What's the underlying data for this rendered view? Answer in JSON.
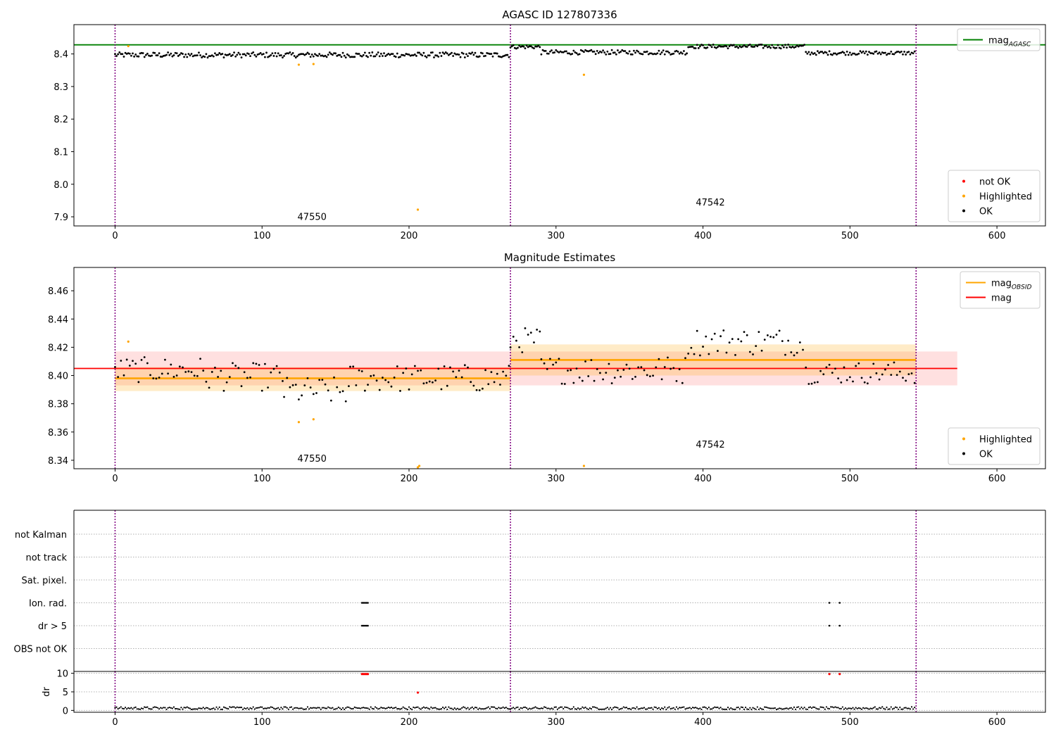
{
  "colors": {
    "ok": "#000000",
    "highlighted": "#ffa500",
    "not_ok": "#ff0000",
    "mag_agasc": "#008000",
    "mag": "#ff0000",
    "mag_obsid": "#ffa500",
    "obsid_boundary": "#800080"
  },
  "chart_data": [
    {
      "type": "scatter",
      "title": "AGASC ID 127807336",
      "xlim": [
        -28,
        633
      ],
      "ylim": [
        7.872,
        8.49
      ],
      "xticks": [
        "0",
        "100",
        "200",
        "300",
        "400",
        "500",
        "600"
      ],
      "yticks": [
        "7.9",
        "8.0",
        "8.1",
        "8.2",
        "8.3",
        "8.4"
      ],
      "obsid_boundaries": [
        0,
        269,
        545
      ],
      "obsid_labels": [
        {
          "text": "47550",
          "x": 134,
          "y": 7.89
        },
        {
          "text": "47542",
          "x": 405,
          "y": 7.935
        }
      ],
      "lines": [
        {
          "name": "mag_AGASC",
          "y": 8.428,
          "x": [
            -28,
            633
          ]
        }
      ],
      "segments": [
        {
          "x0": 0,
          "x1": 269,
          "mean": 8.397,
          "amp": 0.008
        },
        {
          "x0": 269,
          "x1": 290,
          "mean": 8.422,
          "amp": 0.006
        },
        {
          "x0": 290,
          "x1": 390,
          "mean": 8.405,
          "amp": 0.007
        },
        {
          "x0": 390,
          "x1": 470,
          "mean": 8.423,
          "amp": 0.006
        },
        {
          "x0": 470,
          "x1": 545,
          "mean": 8.403,
          "amp": 0.006
        }
      ],
      "highlighted_points": [
        [
          9,
          8.424
        ],
        [
          125,
          8.367
        ],
        [
          135,
          8.369
        ],
        [
          206,
          7.922
        ],
        [
          319,
          8.336
        ]
      ],
      "legends": [
        {
          "position": "top-right",
          "entries": [
            {
              "kind": "line",
              "label": "mag",
              "sub": "AGASC",
              "color_key": "mag_agasc"
            }
          ]
        },
        {
          "position": "bottom-right",
          "entries": [
            {
              "kind": "dot",
              "label": "not OK",
              "color_key": "not_ok"
            },
            {
              "kind": "dot",
              "label": "Highlighted",
              "color_key": "highlighted"
            },
            {
              "kind": "dot",
              "label": "OK",
              "color_key": "ok"
            }
          ]
        }
      ]
    },
    {
      "type": "scatter",
      "title": "Magnitude Estimates",
      "xlim": [
        -28,
        633
      ],
      "ylim": [
        8.334,
        8.4765
      ],
      "xticks": [
        "0",
        "100",
        "200",
        "300",
        "400",
        "500",
        "600"
      ],
      "yticks": [
        "8.34",
        "8.36",
        "8.38",
        "8.40",
        "8.42",
        "8.44",
        "8.46"
      ],
      "obsid_boundaries": [
        0,
        269,
        545
      ],
      "obsid_labels": [
        {
          "text": "47550",
          "x": 134,
          "y": 8.339
        },
        {
          "text": "47542",
          "x": 405,
          "y": 8.349
        }
      ],
      "bands": [
        {
          "name": "mag",
          "x0": 0,
          "x1": 573,
          "y0": 8.393,
          "y1": 8.417,
          "color_key": "mag"
        },
        {
          "name": "mag_OBSID 47550",
          "x0": 0,
          "x1": 269,
          "y0": 8.389,
          "y1": 8.406,
          "color_key": "mag_obsid"
        },
        {
          "name": "mag_OBSID 47542",
          "x0": 269,
          "x1": 545,
          "y0": 8.4,
          "y1": 8.422,
          "color_key": "mag_obsid"
        }
      ],
      "lines": [
        {
          "name": "mag",
          "y": 8.405,
          "x": [
            -28,
            573
          ]
        },
        {
          "name": "mag_OBSID 47550",
          "y": 8.398,
          "x": [
            0,
            269
          ]
        },
        {
          "name": "mag_OBSID 47542",
          "y": 8.411,
          "x": [
            269,
            545
          ]
        }
      ],
      "segments": [
        {
          "x0": 0,
          "x1": 60,
          "mean": 8.404,
          "amp": 0.009
        },
        {
          "x0": 60,
          "x1": 115,
          "mean": 8.399,
          "amp": 0.01
        },
        {
          "x0": 115,
          "x1": 160,
          "mean": 8.389,
          "amp": 0.01
        },
        {
          "x0": 160,
          "x1": 269,
          "mean": 8.398,
          "amp": 0.01
        },
        {
          "x0": 269,
          "x1": 290,
          "mean": 8.425,
          "amp": 0.009
        },
        {
          "x0": 290,
          "x1": 390,
          "mean": 8.404,
          "amp": 0.01
        },
        {
          "x0": 390,
          "x1": 470,
          "mean": 8.424,
          "amp": 0.01
        },
        {
          "x0": 470,
          "x1": 545,
          "mean": 8.402,
          "amp": 0.008
        }
      ],
      "highlighted_points": [
        [
          9,
          8.424
        ],
        [
          125,
          8.367
        ],
        [
          135,
          8.369
        ],
        [
          206,
          8.335
        ],
        [
          207,
          8.336
        ],
        [
          319,
          8.336
        ]
      ],
      "legends": [
        {
          "position": "top-right",
          "entries": [
            {
              "kind": "line",
              "label": "mag",
              "sub": "OBSID",
              "color_key": "mag_obsid"
            },
            {
              "kind": "line",
              "label": "mag",
              "sub": "",
              "color_key": "mag"
            }
          ]
        },
        {
          "position": "bottom-right",
          "entries": [
            {
              "kind": "dot",
              "label": "Highlighted",
              "color_key": "highlighted"
            },
            {
              "kind": "dot",
              "label": "OK",
              "color_key": "ok"
            }
          ]
        }
      ]
    },
    {
      "type": "scatter",
      "title": "",
      "xlim": [
        -28,
        633
      ],
      "categories": [
        "not Kalman",
        "not track",
        "Sat. pixel.",
        "Ion. rad.",
        "dr > 5",
        "OBS not OK"
      ],
      "flag_points": [
        {
          "category": "Ion. rad.",
          "x": [
            168,
            169,
            170,
            171,
            172,
            486,
            493
          ]
        },
        {
          "category": "dr > 5",
          "x": [
            168,
            169,
            170,
            171,
            172,
            486,
            493
          ]
        }
      ],
      "obsid_boundaries": [
        0,
        269,
        545
      ]
    },
    {
      "type": "scatter",
      "ylabel": "dr",
      "xlim": [
        -28,
        633
      ],
      "ylim": [
        -0.5,
        10.5
      ],
      "xticks": [
        "0",
        "100",
        "200",
        "300",
        "400",
        "500",
        "600"
      ],
      "yticks": [
        "0",
        "5",
        "10"
      ],
      "obsid_boundaries": [
        0,
        269,
        545
      ],
      "dr_baseline": 0.6,
      "red_points": [
        [
          168,
          9.8
        ],
        [
          169,
          9.8
        ],
        [
          170,
          9.8
        ],
        [
          171,
          9.8
        ],
        [
          172,
          9.8
        ],
        [
          486,
          9.8
        ],
        [
          493,
          9.8
        ],
        [
          206,
          4.8
        ]
      ]
    }
  ]
}
